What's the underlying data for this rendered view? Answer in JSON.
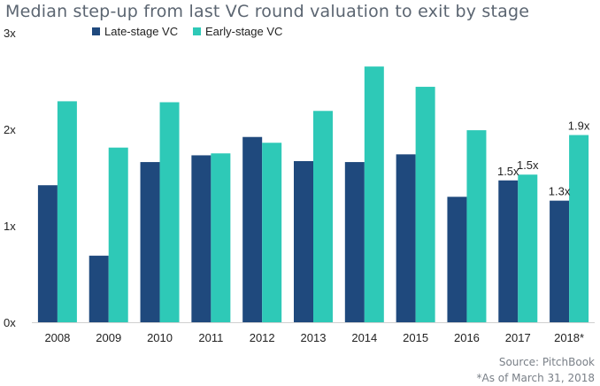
{
  "chart_data": {
    "type": "bar",
    "title": "Median step-up from last VC round valuation to exit by stage",
    "categories": [
      "2008",
      "2009",
      "2010",
      "2011",
      "2012",
      "2013",
      "2014",
      "2015",
      "2016",
      "2017",
      "2018*"
    ],
    "series": [
      {
        "name": "Late-stage VC",
        "color": "#1f497d",
        "values": [
          1.42,
          0.69,
          1.66,
          1.73,
          1.92,
          1.67,
          1.66,
          1.74,
          1.3,
          1.47,
          1.26
        ]
      },
      {
        "name": "Early-stage VC",
        "color": "#2ec9b7",
        "values": [
          2.29,
          1.81,
          2.28,
          1.75,
          1.86,
          2.19,
          2.65,
          2.44,
          1.99,
          1.53,
          1.94
        ]
      }
    ],
    "ylim": [
      0,
      3
    ],
    "yticks": [
      "0x",
      "1x",
      "2x",
      "3x"
    ],
    "legend_position": "top-left",
    "grid": false,
    "data_labels": [
      {
        "series": 0,
        "category": "2017",
        "text": "1.5x"
      },
      {
        "series": 1,
        "category": "2017",
        "text": "1.5x"
      },
      {
        "series": 0,
        "category": "2018*",
        "text": "1.3x"
      },
      {
        "series": 1,
        "category": "2018*",
        "text": "1.9x"
      }
    ],
    "source": "Source: PitchBook",
    "note": "*As of March 31, 2018"
  }
}
